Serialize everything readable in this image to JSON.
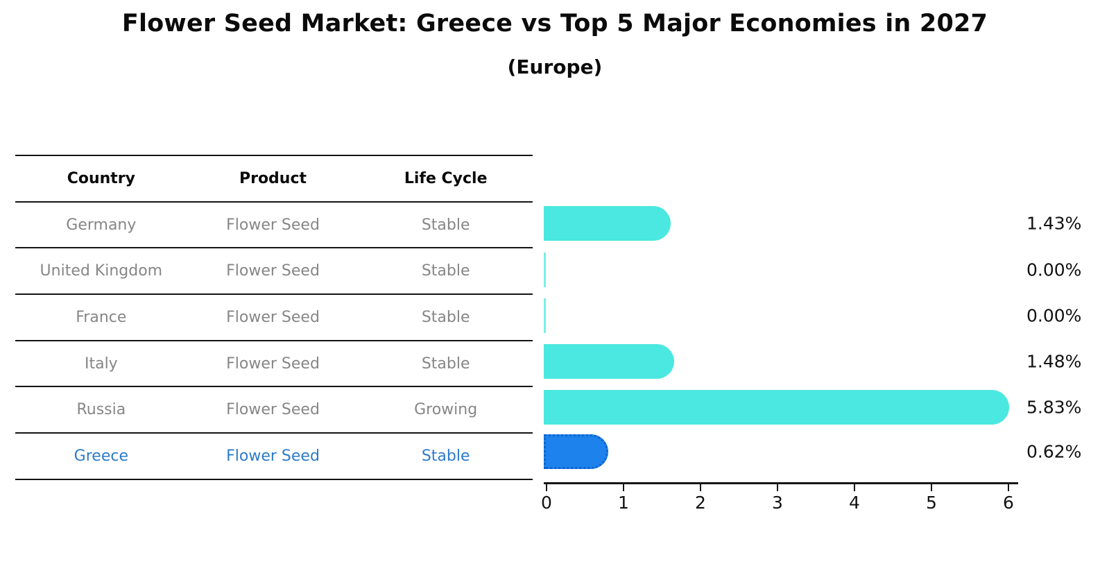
{
  "title": "Flower Seed Market: Greece vs Top 5 Major Economies in 2027",
  "subtitle": "(Europe)",
  "table": {
    "columns": [
      "Country",
      "Product",
      "Life Cycle"
    ]
  },
  "chart_data": {
    "type": "bar",
    "orientation": "horizontal",
    "title": "Flower Seed Market: Greece vs Top 5 Major Economies in 2027",
    "subtitle": "(Europe)",
    "categories": [
      "Germany",
      "United Kingdom",
      "France",
      "Italy",
      "Russia",
      "Greece"
    ],
    "values": [
      1.43,
      0.0,
      0.0,
      1.48,
      5.83,
      0.62
    ],
    "value_labels": [
      "1.43%",
      "0.00%",
      "0.00%",
      "1.48%",
      "5.83%",
      "0.62%"
    ],
    "xlim": [
      0,
      6
    ],
    "x_ticks": [
      "0",
      "1",
      "2",
      "3",
      "4",
      "5",
      "6"
    ],
    "grid": "off",
    "legend": "none",
    "rows": [
      {
        "country": "Germany",
        "product": "Flower Seed",
        "life_cycle": "Stable",
        "value": 1.43,
        "label": "1.43%",
        "highlight": false
      },
      {
        "country": "United Kingdom",
        "product": "Flower Seed",
        "life_cycle": "Stable",
        "value": 0.0,
        "label": "0.00%",
        "highlight": false
      },
      {
        "country": "France",
        "product": "Flower Seed",
        "life_cycle": "Stable",
        "value": 0.0,
        "label": "0.00%",
        "highlight": false
      },
      {
        "country": "Italy",
        "product": "Flower Seed",
        "life_cycle": "Stable",
        "value": 1.48,
        "label": "1.48%",
        "highlight": false
      },
      {
        "country": "Russia",
        "product": "Flower Seed",
        "life_cycle": "Growing",
        "value": 5.83,
        "label": "5.83%",
        "highlight": false
      },
      {
        "country": "Greece",
        "product": "Flower Seed",
        "life_cycle": "Stable",
        "value": 0.62,
        "label": "0.62%",
        "highlight": true
      }
    ],
    "colors": {
      "bar": "#4ae8e0",
      "highlight_bar": "#1d82ec",
      "highlight_bar_border": "#0d63ce",
      "row_text": "#868686",
      "highlight_row_text": "#2b7bca",
      "header_text": "#0b0b0b",
      "label_text": "#111111"
    }
  }
}
